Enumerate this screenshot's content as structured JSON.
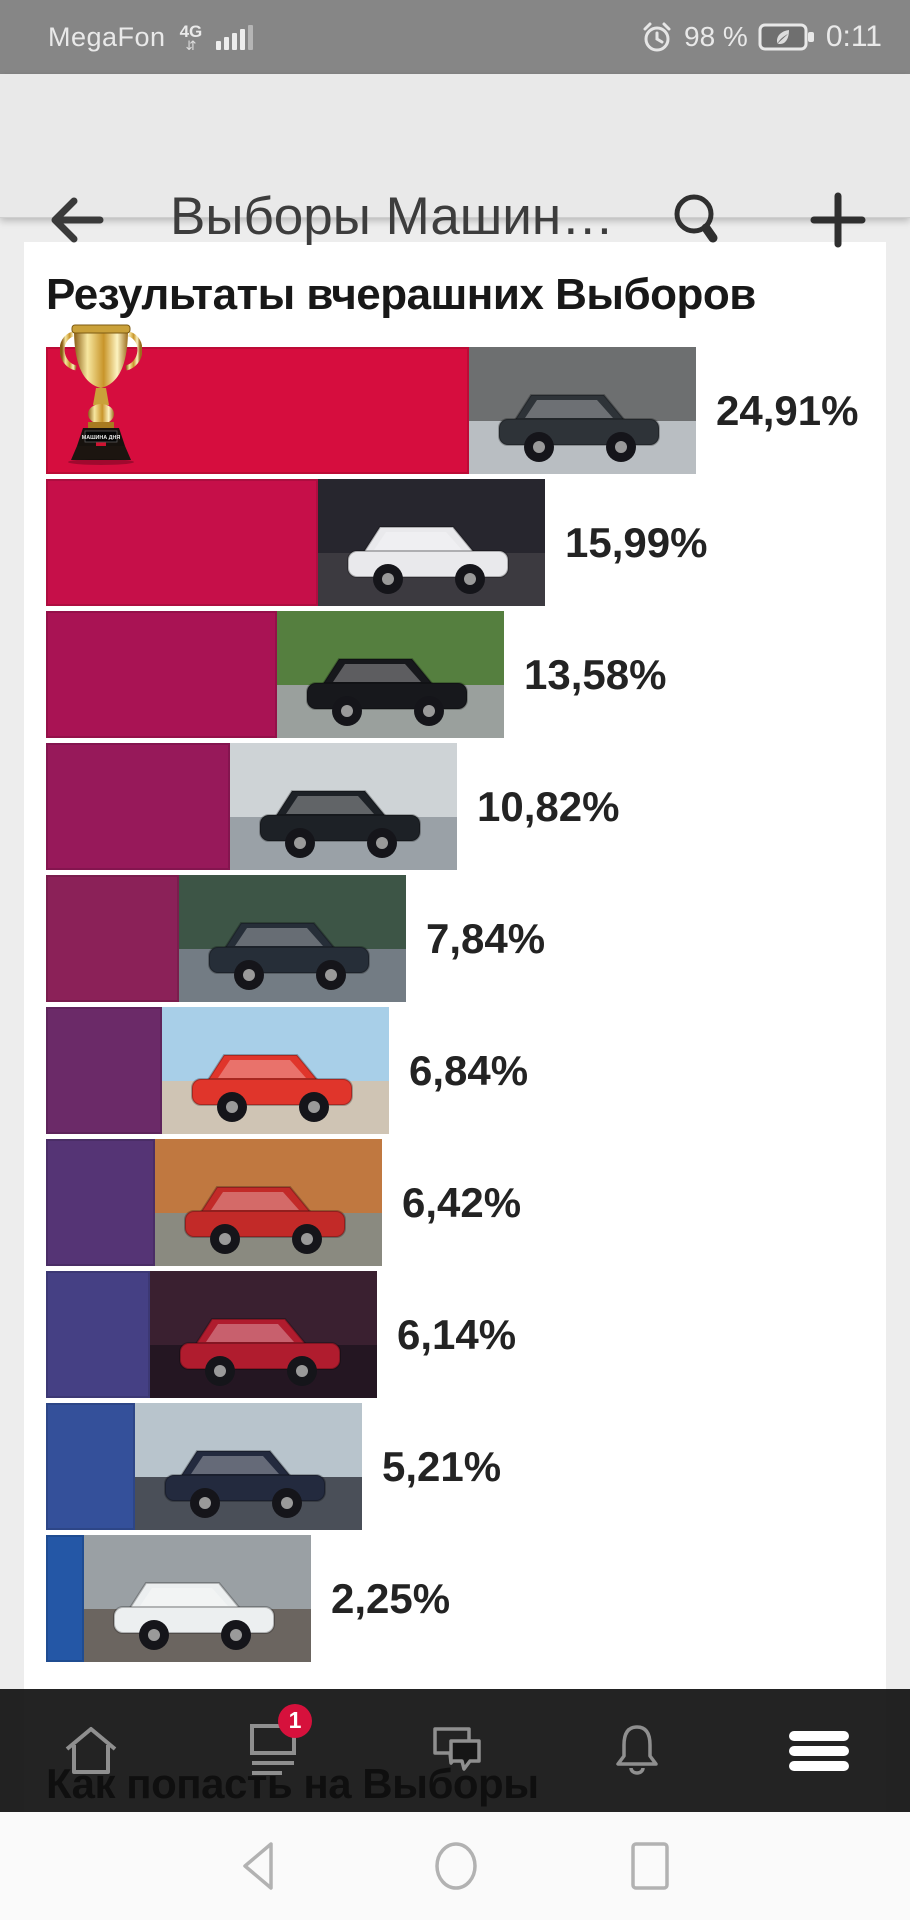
{
  "status_bar": {
    "carrier": "MegaFon",
    "network": "4G",
    "battery_percent": "98 %",
    "time": "0:11"
  },
  "app_bar": {
    "title": "Выборы Машин…"
  },
  "content": {
    "results_heading": "Результаты вчерашних Выборов",
    "howto_heading": "Как попасть на Выборы",
    "trophy_label": "МАШИНА ДНЯ"
  },
  "chart_data": {
    "type": "bar",
    "orientation": "horizontal",
    "title": "Результаты вчерашних Выборов",
    "unit": "%",
    "values": [
      24.91,
      15.99,
      13.58,
      10.82,
      7.84,
      6.84,
      6.42,
      6.14,
      5.21,
      2.25
    ],
    "labels": [
      "24,91%",
      "15,99%",
      "13,58%",
      "10,82%",
      "7,84%",
      "6,84%",
      "6,42%",
      "6,14%",
      "5,21%",
      "2,25%"
    ],
    "winner_index": 0,
    "bar_colors": [
      "#d60d3e",
      "#c60f49",
      "#a91354",
      "#97195a",
      "#8b2158",
      "#6b2a68",
      "#553475",
      "#454084",
      "#34509a",
      "#2457a6"
    ]
  },
  "rows": [
    {
      "label": "24,91%",
      "value": 24.91,
      "bar_color": "#d60d3e",
      "trophy": true,
      "photo": {
        "alt": "dark-sedan-winter-yard",
        "sky": "#6d6f70",
        "ground": "#b9bec2",
        "car": "#2e3338"
      }
    },
    {
      "label": "15,99%",
      "value": 15.99,
      "bar_color": "#c60f49",
      "trophy": false,
      "photo": {
        "alt": "white-sedan-night-lot",
        "sky": "#27262e",
        "ground": "#3c3a40",
        "car": "#e9e9ec"
      }
    },
    {
      "label": "13,58%",
      "value": 13.58,
      "bar_color": "#a91354",
      "trophy": false,
      "photo": {
        "alt": "black-convertible-race-track",
        "sky": "#557f3f",
        "ground": "#9aa09d",
        "car": "#17181c"
      }
    },
    {
      "label": "10,82%",
      "value": 10.82,
      "bar_color": "#97195a",
      "trophy": false,
      "photo": {
        "alt": "black-car-open-hood-workshop",
        "sky": "#ced3d6",
        "ground": "#9aa1a7",
        "car": "#1d2126"
      }
    },
    {
      "label": "7,84%",
      "value": 7.84,
      "bar_color": "#8b2158",
      "trophy": false,
      "photo": {
        "alt": "dark-wagon-trees",
        "sky": "#3d5546",
        "ground": "#737c84",
        "car": "#262e38"
      }
    },
    {
      "label": "6,84%",
      "value": 6.84,
      "bar_color": "#6b2a68",
      "trophy": false,
      "photo": {
        "alt": "red-crossover-bright-sky",
        "sky": "#a8cfe8",
        "ground": "#cfc4b4",
        "car": "#e0352b"
      }
    },
    {
      "label": "6,42%",
      "value": 6.42,
      "bar_color": "#553475",
      "trophy": false,
      "photo": {
        "alt": "red-hatchback-orange-building",
        "sky": "#c07840",
        "ground": "#8a8a80",
        "car": "#c22a28"
      }
    },
    {
      "label": "6,14%",
      "value": 6.14,
      "bar_color": "#454084",
      "trophy": false,
      "photo": {
        "alt": "red-sedan-night-rear",
        "sky": "#3a2030",
        "ground": "#241622",
        "car": "#b01c2e"
      }
    },
    {
      "label": "5,21%",
      "value": 5.21,
      "bar_color": "#34509a",
      "trophy": false,
      "photo": {
        "alt": "dark-sedan-highway-dusk",
        "sky": "#b8c4cc",
        "ground": "#4a4f58",
        "car": "#232a3e"
      }
    },
    {
      "label": "2,25%",
      "value": 2.25,
      "bar_color": "#2457a6",
      "trophy": false,
      "photo": {
        "alt": "white-sportscar-courtyard",
        "sky": "#9aa0a4",
        "ground": "#6b6560",
        "car": "#eceff0"
      }
    }
  ],
  "bottom_nav": {
    "badge": "1",
    "items": [
      "home",
      "feed",
      "messages",
      "notifications",
      "menu"
    ]
  },
  "android_nav": [
    "back",
    "home",
    "recents"
  ],
  "colors": {
    "badge_red": "#d6113c",
    "statusbar_bg": "#868686",
    "appbar_bg": "#e9e9e9",
    "nav_bg": "#101010",
    "card_bg": "#ffffff"
  }
}
